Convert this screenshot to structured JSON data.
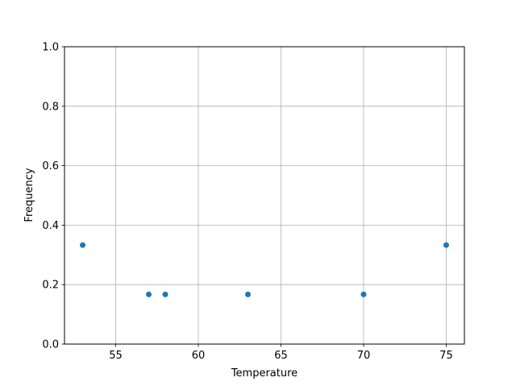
{
  "chart_data": {
    "type": "scatter",
    "title": "",
    "xlabel": "Temperature",
    "ylabel": "Frequency",
    "x": [
      53,
      57,
      58,
      63,
      70,
      75
    ],
    "y": [
      0.333,
      0.167,
      0.167,
      0.167,
      0.167,
      0.333
    ],
    "xlim": [
      51.9,
      76.1
    ],
    "ylim": [
      0.0,
      1.0
    ],
    "xticks": [
      55,
      60,
      65,
      70,
      75
    ],
    "xtick_labels": [
      "55",
      "60",
      "65",
      "70",
      "75"
    ],
    "yticks": [
      0.0,
      0.2,
      0.4,
      0.6,
      0.8,
      1.0
    ],
    "ytick_labels": [
      "0.0",
      "0.2",
      "0.4",
      "0.6",
      "0.8",
      "1.0"
    ],
    "grid": true,
    "marker_color": "#1f77b4"
  }
}
